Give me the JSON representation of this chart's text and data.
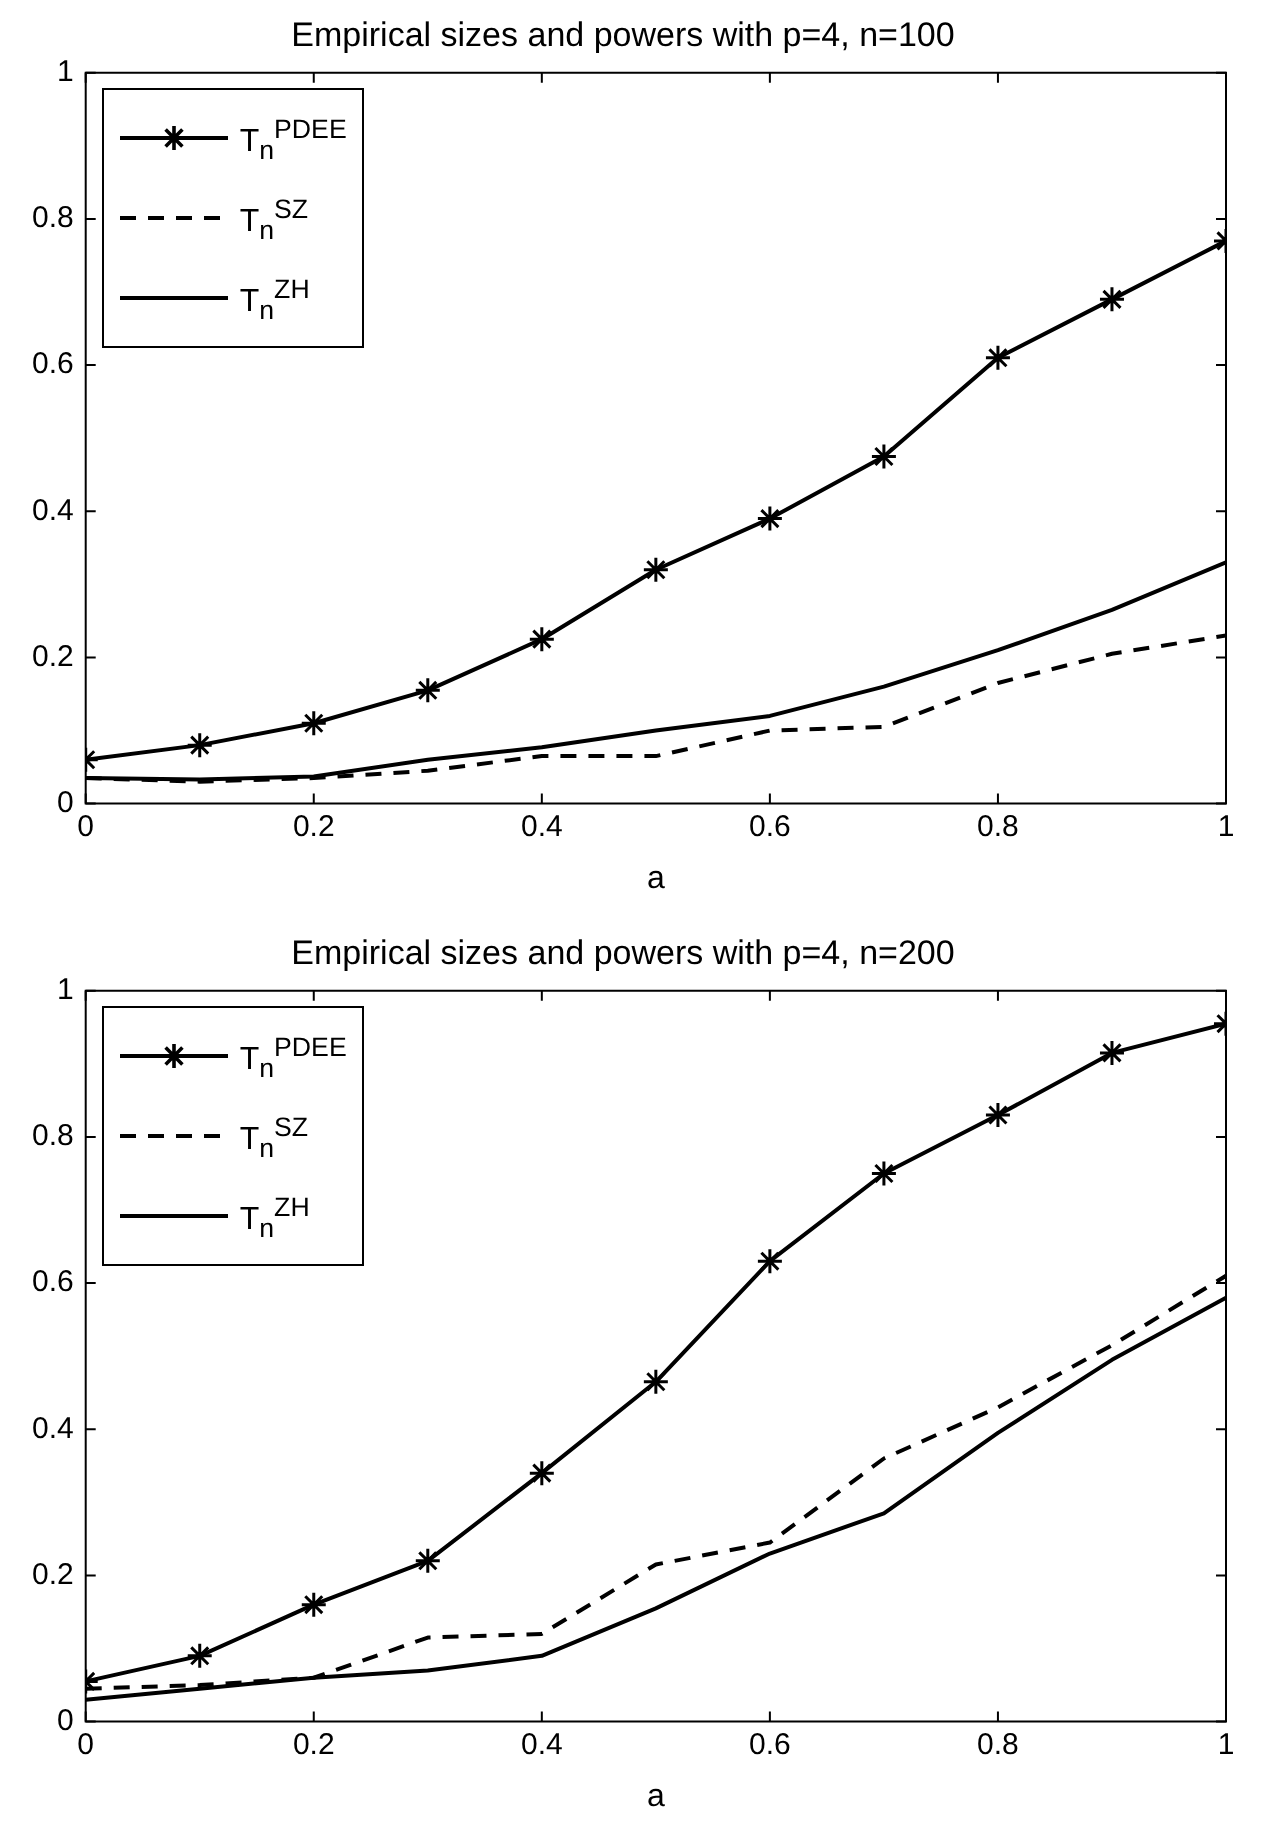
{
  "chart_data": [
    {
      "type": "line",
      "title": "Empirical sizes and powers with p=4, n=100",
      "xlabel": "a",
      "x": [
        0,
        0.1,
        0.2,
        0.3,
        0.4,
        0.5,
        0.6,
        0.7,
        0.8,
        0.9,
        1
      ],
      "xlim": [
        0,
        1
      ],
      "xticks": [
        0,
        0.2,
        0.4,
        0.6,
        0.8,
        1
      ],
      "ylim": [
        0,
        1
      ],
      "yticks": [
        0,
        0.2,
        0.4,
        0.6,
        0.8,
        1
      ],
      "grid": false,
      "legend": "top left",
      "series": [
        {
          "name": "T$_{n}$$^{PDEE}$",
          "color": "#000000",
          "marker": "cross",
          "line_style": "solid",
          "values": [
            0.06,
            0.08,
            0.11,
            0.155,
            0.225,
            0.32,
            0.39,
            0.475,
            0.61,
            0.69,
            0.77
          ]
        },
        {
          "name": "T$_{n}$$^{SZ}$",
          "color": "#000000",
          "marker": "none",
          "line_style": "dashed",
          "values": [
            0.035,
            0.03,
            0.035,
            0.045,
            0.065,
            0.065,
            0.1,
            0.105,
            0.165,
            0.205,
            0.23
          ]
        },
        {
          "name": "T$_{n}$$^{ZH}$",
          "color": "#000000",
          "marker": "none",
          "line_style": "solid",
          "values": [
            0.035,
            0.033,
            0.037,
            0.06,
            0.077,
            0.1,
            0.12,
            0.16,
            0.21,
            0.265,
            0.33
          ]
        }
      ]
    },
    {
      "type": "line",
      "title": "Empirical sizes and powers with p=4, n=200",
      "xlabel": "a",
      "x": [
        0,
        0.1,
        0.2,
        0.3,
        0.4,
        0.5,
        0.6,
        0.7,
        0.8,
        0.9,
        1
      ],
      "xlim": [
        0,
        1
      ],
      "xticks": [
        0,
        0.2,
        0.4,
        0.6,
        0.8,
        1
      ],
      "ylim": [
        0,
        1
      ],
      "yticks": [
        0,
        0.2,
        0.4,
        0.6,
        0.8,
        1
      ],
      "grid": false,
      "legend": "top left",
      "series": [
        {
          "name": "T$_{n}$$^{PDEE}$",
          "color": "#000000",
          "marker": "cross",
          "line_style": "solid",
          "values": [
            0.055,
            0.09,
            0.16,
            0.22,
            0.34,
            0.465,
            0.63,
            0.75,
            0.83,
            0.915,
            0.955
          ]
        },
        {
          "name": "T$_{n}$$^{SZ}$",
          "color": "#000000",
          "marker": "none",
          "line_style": "dashed",
          "values": [
            0.045,
            0.05,
            0.06,
            0.115,
            0.12,
            0.215,
            0.245,
            0.36,
            0.43,
            0.515,
            0.61
          ]
        },
        {
          "name": "T$_{n}$$^{ZH}$",
          "color": "#000000",
          "marker": "none",
          "line_style": "solid",
          "values": [
            0.03,
            0.045,
            0.06,
            0.07,
            0.09,
            0.155,
            0.23,
            0.285,
            0.395,
            0.495,
            0.58
          ]
        }
      ]
    }
  ]
}
